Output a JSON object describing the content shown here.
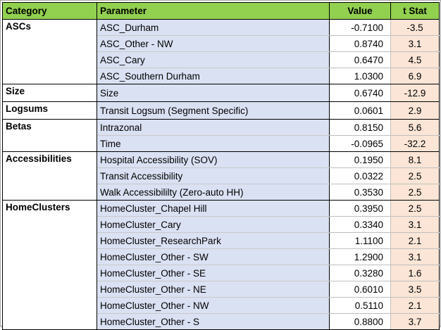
{
  "headers": {
    "category": "Category",
    "parameter": "Parameter",
    "value": "Value",
    "tstat": "t Stat"
  },
  "groups": [
    {
      "category": "ASCs",
      "rows": [
        {
          "parameter": "ASC_Durham",
          "value": "-0.7100",
          "tstat": "-3.5"
        },
        {
          "parameter": "ASC_Other - NW",
          "value": "0.8740",
          "tstat": "3.1"
        },
        {
          "parameter": "ASC_Cary",
          "value": "0.6470",
          "tstat": "4.5"
        },
        {
          "parameter": "ASC_Southern Durham",
          "value": "1.0300",
          "tstat": "6.9"
        }
      ]
    },
    {
      "category": "Size",
      "rows": [
        {
          "parameter": "Size",
          "value": "0.6740",
          "tstat": "-12.9"
        }
      ]
    },
    {
      "category": "Logsums",
      "rows": [
        {
          "parameter": "Transit Logsum (Segment Specific)",
          "value": "0.0601",
          "tstat": "2.9"
        }
      ]
    },
    {
      "category": "Betas",
      "rows": [
        {
          "parameter": "Intrazonal",
          "value": "0.8150",
          "tstat": "5.6"
        },
        {
          "parameter": "Time",
          "value": "-0.0965",
          "tstat": "-32.2"
        }
      ]
    },
    {
      "category": "Accessibilities",
      "rows": [
        {
          "parameter": "Hospital Accessibility (SOV)",
          "value": "0.1950",
          "tstat": "8.1"
        },
        {
          "parameter": "Transit Accessibility",
          "value": "0.0322",
          "tstat": "2.5"
        },
        {
          "parameter": "Walk Accessibililty (Zero-auto HH)",
          "value": "0.3530",
          "tstat": "2.5"
        }
      ]
    },
    {
      "category": "HomeClusters",
      "rows": [
        {
          "parameter": "HomeCluster_Chapel Hill",
          "value": "0.3950",
          "tstat": "2.5"
        },
        {
          "parameter": "HomeCluster_Cary",
          "value": "0.3340",
          "tstat": "3.1"
        },
        {
          "parameter": "HomeCluster_ResearchPark",
          "value": "1.1100",
          "tstat": "2.1"
        },
        {
          "parameter": "HomeCluster_Other - SW",
          "value": "1.2900",
          "tstat": "3.1"
        },
        {
          "parameter": "HomeCluster_Other - SE",
          "value": "0.3280",
          "tstat": "1.6"
        },
        {
          "parameter": "HomeCluster_Other - NE",
          "value": "0.6010",
          "tstat": "3.5"
        },
        {
          "parameter": "HomeCluster_Other - NW",
          "value": "0.5110",
          "tstat": "2.1"
        },
        {
          "parameter": "HomeCluster_Other - S",
          "value": "0.8800",
          "tstat": "3.7"
        }
      ]
    }
  ]
}
